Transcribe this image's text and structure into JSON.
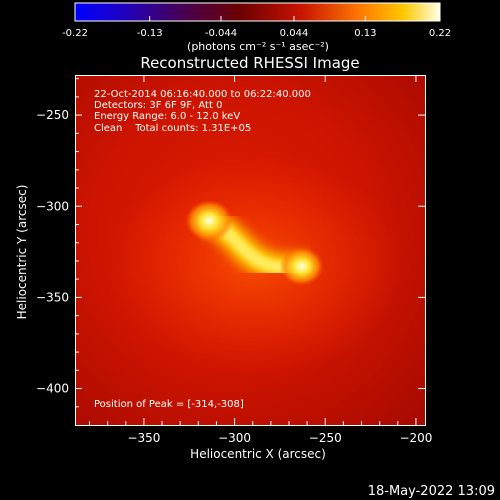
{
  "colorbar": {
    "ticks": [
      "-0.22",
      "-0.13",
      "-0.044",
      "0.044",
      "0.13",
      "0.22"
    ],
    "unit_label": "(photons cm⁻² s⁻¹ asec⁻²)",
    "range": [
      -0.22,
      0.22
    ]
  },
  "chart_data": {
    "type": "heatmap",
    "title": "Reconstructed RHESSI Image",
    "xlabel": "Heliocentric X (arcsec)",
    "ylabel": "Heliocentric Y (arcsec)",
    "xlim": [
      -388,
      -195
    ],
    "ylim": [
      -420,
      -228
    ],
    "x_ticks": [
      -350,
      -300,
      -250,
      -200
    ],
    "x_tick_labels": [
      "−350",
      "−300",
      "−250",
      "−200"
    ],
    "y_ticks": [
      -250,
      -300,
      -350,
      -400
    ],
    "y_tick_labels": [
      "−250",
      "−300",
      "−350",
      "−400"
    ],
    "colormap": "red-temperature",
    "sources": [
      {
        "name": "source-1",
        "x": -314,
        "y": -308,
        "intensity": 1.0
      },
      {
        "name": "source-2",
        "x": -263,
        "y": -333,
        "intensity": 0.9
      }
    ],
    "annotations": [
      "22-Oct-2014 06:16:40.000 to 06:22:40.000",
      "Detectors: 3F 6F 9F, Att 0",
      "Energy Range: 6.0 - 12.0 keV",
      "Clean    Total counts: 1.31E+05"
    ],
    "peak_label": "Position of Peak = [-314,-308]"
  },
  "footer": {
    "timestamp": "18-May-2022 13:09"
  }
}
